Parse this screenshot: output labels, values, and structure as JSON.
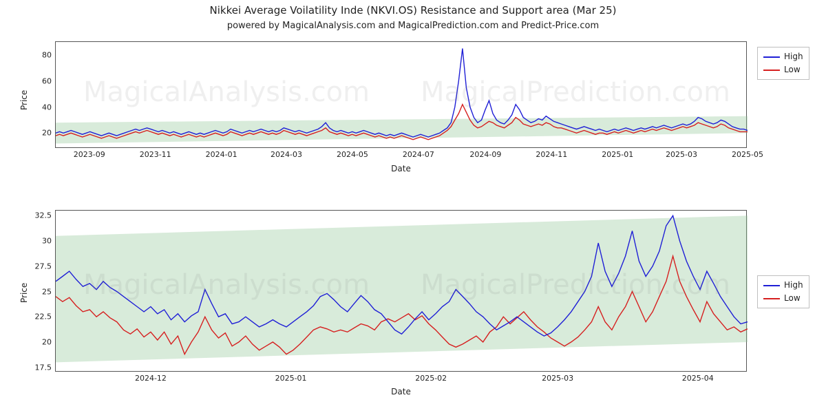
{
  "meta": {
    "title": "Nikkei Average Voilatility Inde (NKVI.OS) Resistance and Support area (Mar 25)",
    "subtitle": "powered by MagicalAnalysis.com and MagicalPrediction.com and Predict-Price.com"
  },
  "watermarks": {
    "a_left": "MagicalAnalysis.com",
    "a_right": "MagicalPrediction.com",
    "b_left": "MagicalAnalysis.com",
    "b_right": "MagicalPrediction.com"
  },
  "legend": {
    "high": "High",
    "low": "Low"
  },
  "colors": {
    "high": "#1f1fd6",
    "low": "#d61f1f",
    "axis": "#555555",
    "grid": "#cfcfcf",
    "band": "rgba(144,198,149,0.35)",
    "bg": "#ffffff"
  },
  "chart_a": {
    "type": "line",
    "x_label": "Date",
    "y_label": "Price",
    "ylim": [
      8,
      90
    ],
    "y_ticks": [
      20,
      40,
      60,
      80
    ],
    "x_start": "2023-08-01",
    "x_end": "2025-05-01",
    "x_ticks": [
      {
        "t": "2023-09-01",
        "label": "2023-09"
      },
      {
        "t": "2023-11-01",
        "label": "2023-11"
      },
      {
        "t": "2024-01-01",
        "label": "2024-01"
      },
      {
        "t": "2024-03-01",
        "label": "2024-03"
      },
      {
        "t": "2024-05-01",
        "label": "2024-05"
      },
      {
        "t": "2024-07-01",
        "label": "2024-07"
      },
      {
        "t": "2024-09-01",
        "label": "2024-09"
      },
      {
        "t": "2024-11-01",
        "label": "2024-11"
      },
      {
        "t": "2025-01-01",
        "label": "2025-01"
      },
      {
        "t": "2025-03-01",
        "label": "2025-03"
      },
      {
        "t": "2025-05-01",
        "label": "2025-05"
      }
    ],
    "support_band": {
      "left_y": [
        12,
        28
      ],
      "right_y": [
        20,
        33
      ]
    },
    "series": {
      "high": [
        20,
        21,
        20,
        21,
        22,
        21,
        20,
        19,
        20,
        21,
        20,
        19,
        18,
        19,
        20,
        19,
        18,
        19,
        20,
        21,
        22,
        23,
        22,
        23,
        24,
        23,
        22,
        21,
        22,
        21,
        20,
        21,
        20,
        19,
        20,
        21,
        20,
        19,
        20,
        19,
        20,
        21,
        22,
        21,
        20,
        21,
        23,
        22,
        21,
        20,
        21,
        22,
        21,
        22,
        23,
        22,
        21,
        22,
        21,
        22,
        24,
        23,
        22,
        21,
        22,
        21,
        20,
        21,
        22,
        23,
        25,
        28,
        24,
        22,
        21,
        22,
        21,
        20,
        21,
        20,
        21,
        22,
        21,
        20,
        19,
        20,
        19,
        18,
        19,
        18,
        19,
        20,
        19,
        18,
        17,
        18,
        19,
        18,
        17,
        18,
        19,
        20,
        22,
        24,
        28,
        40,
        60,
        85,
        55,
        40,
        32,
        28,
        30,
        38,
        45,
        35,
        30,
        28,
        27,
        30,
        34,
        42,
        38,
        32,
        30,
        28,
        29,
        31,
        30,
        33,
        31,
        29,
        28,
        27,
        26,
        25,
        24,
        23,
        24,
        25,
        24,
        23,
        22,
        23,
        22,
        21,
        22,
        23,
        22,
        23,
        24,
        23,
        22,
        23,
        24,
        23,
        24,
        25,
        24,
        25,
        26,
        25,
        24,
        25,
        26,
        27,
        26,
        27,
        29,
        32,
        31,
        29,
        28,
        27,
        28,
        30,
        29,
        27,
        25,
        24,
        23,
        23,
        22
      ],
      "low": [
        18,
        19,
        18,
        19,
        20,
        19,
        18,
        17,
        18,
        19,
        18,
        17,
        16,
        17,
        18,
        17,
        16,
        17,
        18,
        19,
        20,
        21,
        20,
        21,
        22,
        21,
        20,
        19,
        20,
        19,
        18,
        19,
        18,
        17,
        18,
        19,
        18,
        17,
        18,
        17,
        18,
        19,
        20,
        19,
        18,
        19,
        21,
        20,
        19,
        18,
        19,
        20,
        19,
        20,
        21,
        20,
        19,
        20,
        19,
        20,
        22,
        21,
        20,
        19,
        20,
        19,
        18,
        19,
        20,
        21,
        22,
        24,
        21,
        20,
        19,
        20,
        19,
        18,
        19,
        18,
        19,
        20,
        19,
        18,
        17,
        18,
        17,
        16,
        17,
        16,
        17,
        18,
        17,
        16,
        15,
        16,
        17,
        16,
        15,
        16,
        17,
        18,
        20,
        22,
        25,
        30,
        35,
        42,
        36,
        30,
        26,
        24,
        25,
        27,
        29,
        28,
        26,
        25,
        24,
        26,
        28,
        32,
        30,
        27,
        26,
        25,
        26,
        27,
        26,
        28,
        27,
        25,
        24,
        24,
        23,
        22,
        21,
        20,
        21,
        22,
        21,
        20,
        19,
        20,
        20,
        19,
        20,
        21,
        20,
        21,
        22,
        21,
        20,
        21,
        22,
        21,
        22,
        23,
        22,
        23,
        24,
        23,
        22,
        23,
        24,
        25,
        24,
        25,
        26,
        28,
        27,
        26,
        25,
        24,
        25,
        27,
        26,
        24,
        23,
        22,
        21,
        21,
        21
      ]
    }
  },
  "chart_b": {
    "type": "line",
    "x_label": "Date",
    "y_label": "Price",
    "ylim": [
      17,
      33
    ],
    "y_ticks": [
      17.5,
      20.0,
      22.5,
      25.0,
      27.5,
      30.0,
      32.5
    ],
    "x_start": "2024-11-10",
    "x_end": "2025-04-12",
    "x_ticks": [
      {
        "t": "2024-12-01",
        "label": "2024-12"
      },
      {
        "t": "2025-01-01",
        "label": "2025-01"
      },
      {
        "t": "2025-02-01",
        "label": "2025-02"
      },
      {
        "t": "2025-03-01",
        "label": "2025-03"
      },
      {
        "t": "2025-04-01",
        "label": "2025-04"
      }
    ],
    "support_band": {
      "left_y": [
        18,
        30.5
      ],
      "right_y": [
        20,
        32.5
      ]
    },
    "series": {
      "high": [
        26.0,
        26.5,
        27.0,
        26.2,
        25.5,
        25.8,
        25.2,
        26.0,
        25.4,
        25.0,
        24.5,
        24.0,
        23.5,
        23.0,
        23.5,
        22.8,
        23.2,
        22.2,
        22.8,
        22.0,
        22.6,
        23.0,
        25.2,
        23.8,
        22.5,
        22.8,
        21.8,
        22.0,
        22.5,
        22.0,
        21.5,
        21.8,
        22.2,
        21.8,
        21.5,
        22.0,
        22.5,
        23.0,
        23.6,
        24.5,
        24.8,
        24.2,
        23.5,
        23.0,
        23.8,
        24.6,
        24.0,
        23.2,
        22.8,
        22.0,
        21.2,
        20.8,
        21.5,
        22.3,
        23.0,
        22.2,
        22.8,
        23.5,
        24.0,
        25.2,
        24.5,
        23.8,
        23.0,
        22.5,
        21.8,
        21.2,
        21.6,
        22.0,
        22.5,
        22.0,
        21.5,
        21.0,
        20.6,
        20.9,
        21.5,
        22.2,
        23.0,
        24.0,
        25.0,
        26.5,
        29.8,
        27.0,
        25.5,
        26.8,
        28.5,
        31.0,
        28.0,
        26.5,
        27.5,
        29.0,
        31.5,
        32.5,
        30.0,
        28.0,
        26.5,
        25.2,
        27.0,
        25.8,
        24.5,
        23.5,
        22.5,
        21.8,
        22.0
      ],
      "low": [
        24.5,
        24.0,
        24.4,
        23.6,
        23.0,
        23.2,
        22.5,
        23.0,
        22.4,
        22.0,
        21.2,
        20.8,
        21.3,
        20.5,
        21.0,
        20.2,
        21.0,
        19.8,
        20.6,
        18.8,
        20.0,
        21.0,
        22.5,
        21.2,
        20.4,
        20.9,
        19.6,
        20.0,
        20.6,
        19.8,
        19.2,
        19.6,
        20.0,
        19.5,
        18.8,
        19.2,
        19.8,
        20.5,
        21.2,
        21.5,
        21.3,
        21.0,
        21.2,
        21.0,
        21.4,
        21.8,
        21.6,
        21.2,
        22.0,
        22.3,
        22.0,
        22.4,
        22.8,
        22.2,
        22.6,
        21.8,
        21.2,
        20.5,
        19.8,
        19.5,
        19.8,
        20.2,
        20.6,
        20.0,
        21.0,
        21.5,
        22.5,
        21.8,
        22.4,
        23.0,
        22.2,
        21.5,
        21.0,
        20.4,
        20.0,
        19.6,
        20.0,
        20.5,
        21.2,
        22.0,
        23.5,
        22.0,
        21.2,
        22.5,
        23.5,
        25.0,
        23.5,
        22.0,
        23.0,
        24.5,
        26.0,
        28.5,
        26.0,
        24.5,
        23.2,
        22.0,
        24.0,
        22.8,
        22.0,
        21.2,
        21.5,
        21.0,
        21.3
      ]
    }
  },
  "style": {
    "line_width": 1.4,
    "title_fontsize": 15,
    "subtitle_fontsize": 13,
    "tick_fontsize": 11,
    "label_fontsize": 12,
    "watermark_fontsize": 40
  }
}
